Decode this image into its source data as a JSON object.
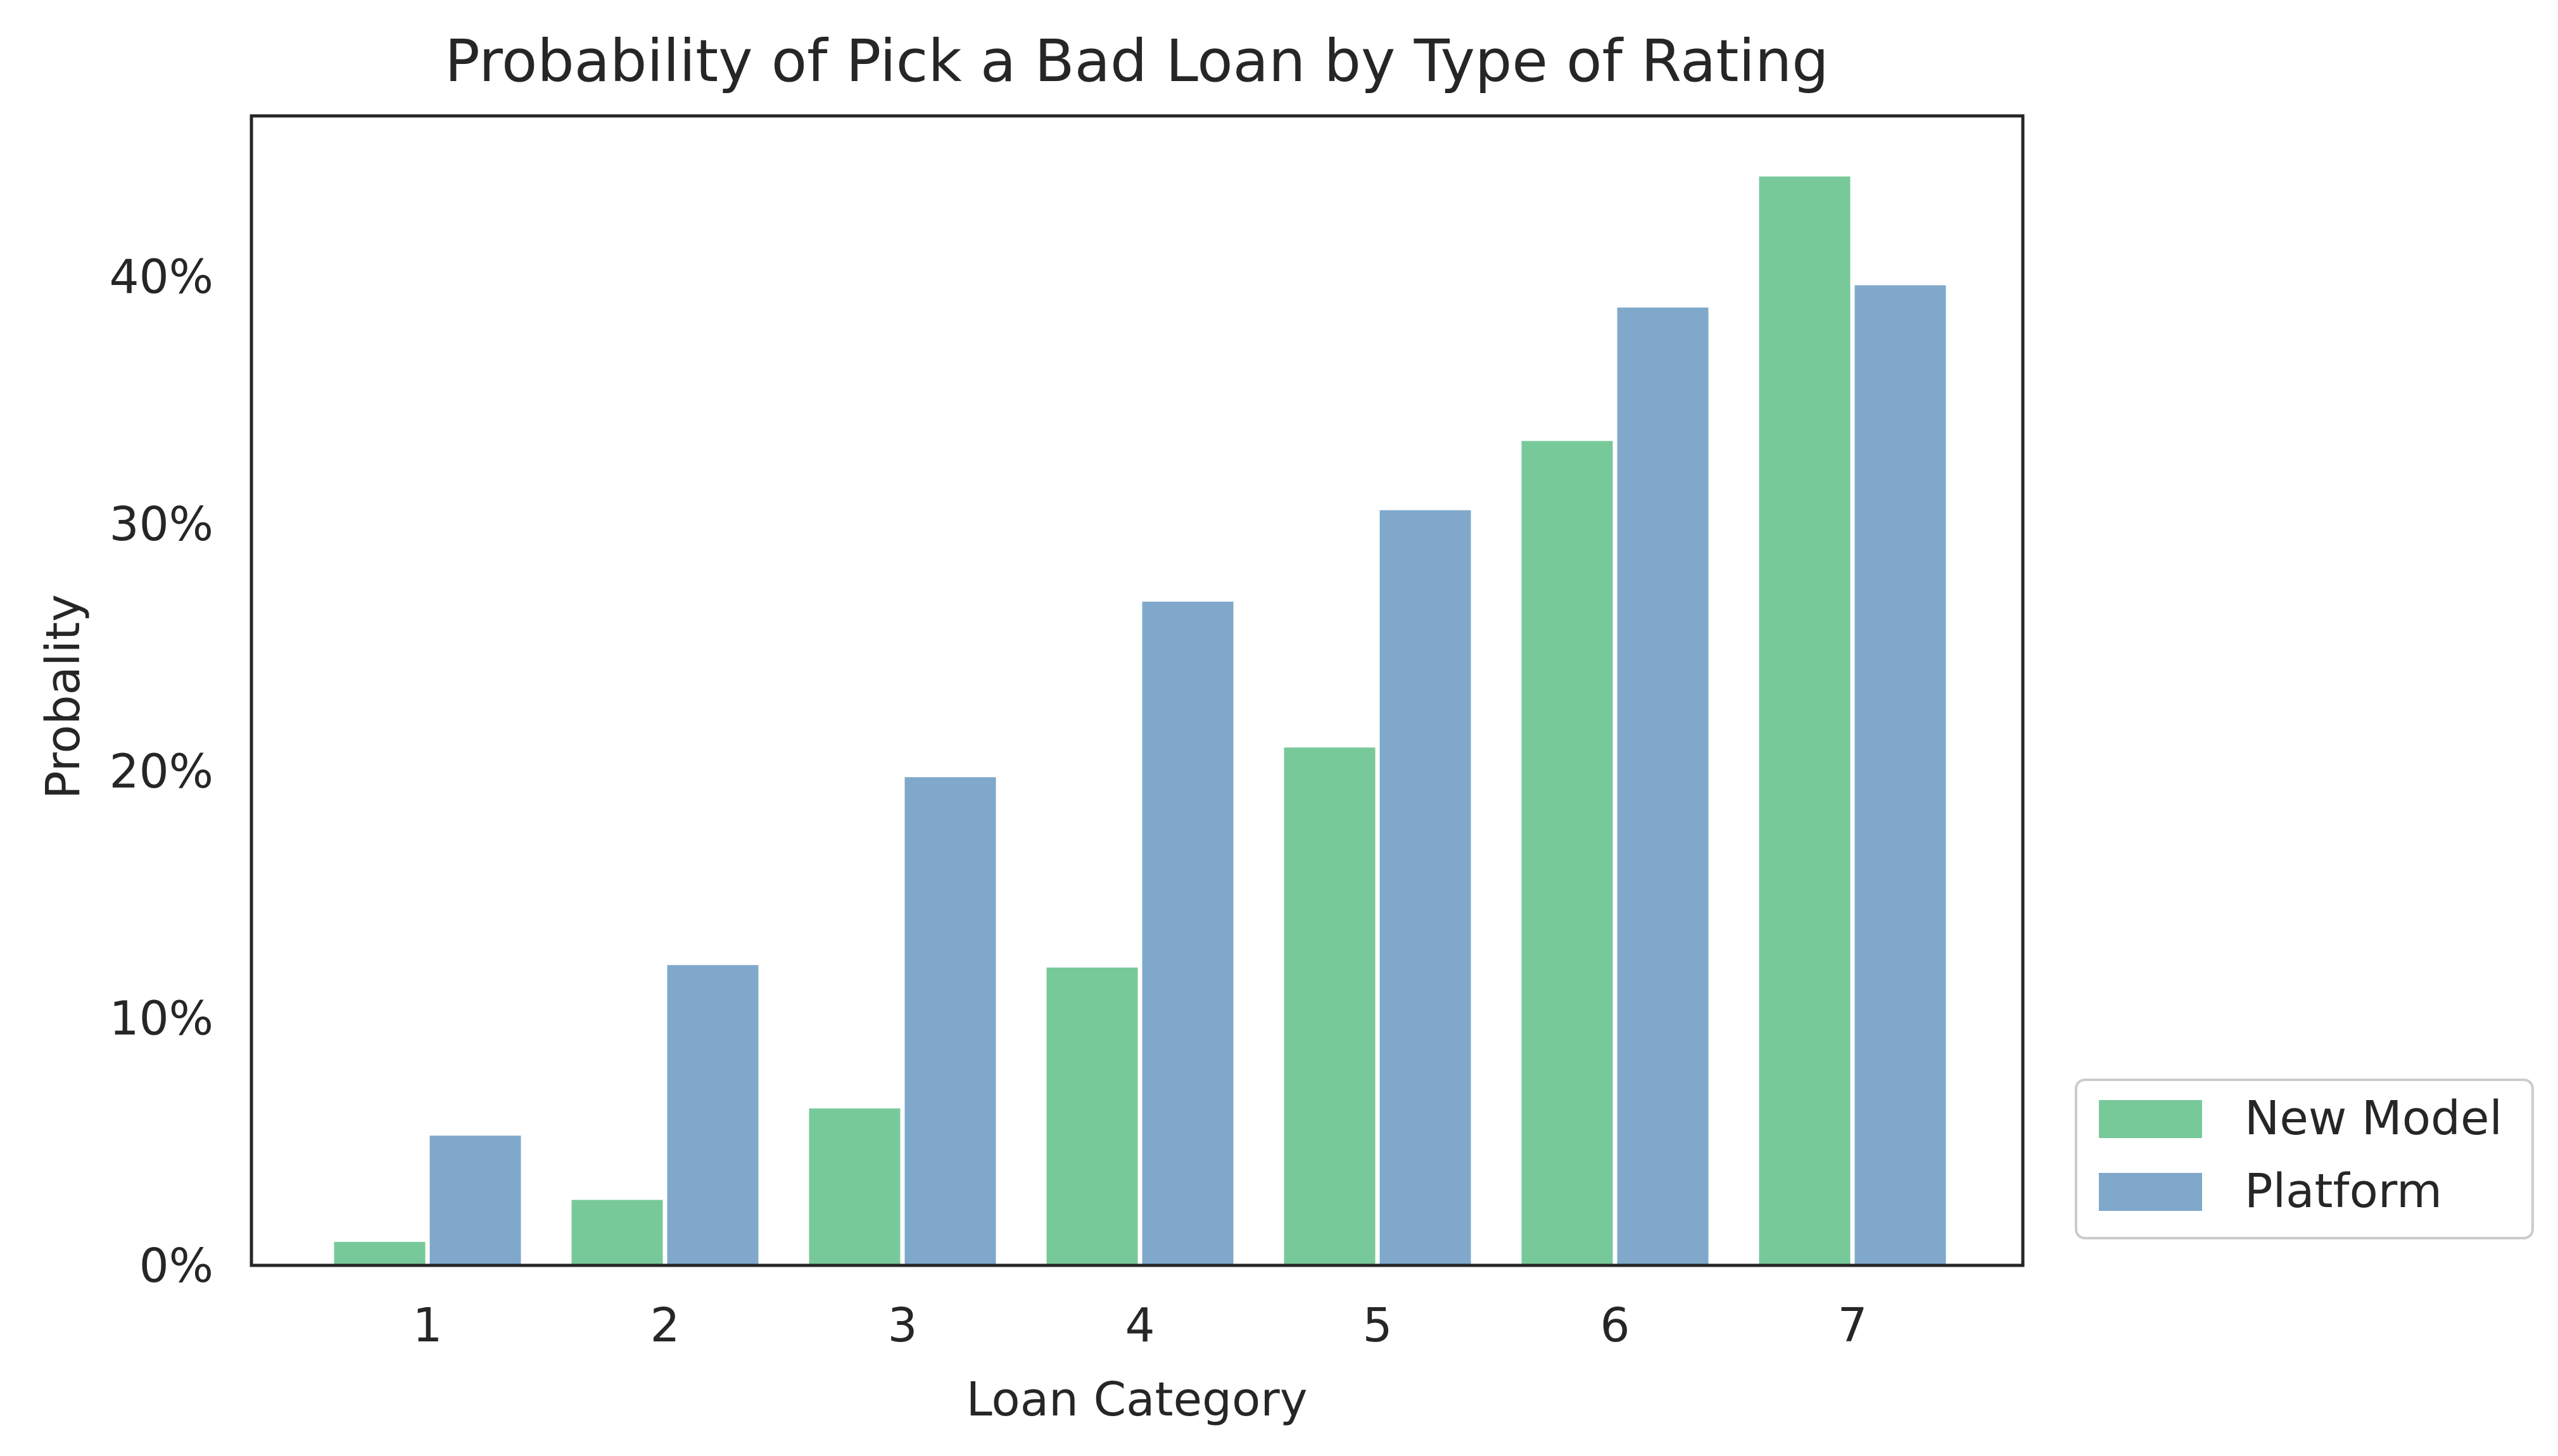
{
  "chart_data": {
    "type": "bar",
    "title": "Probability of Pick a Bad Loan by Type of Rating",
    "xlabel": "Loan Category",
    "ylabel": "Probality",
    "categories": [
      "1",
      "2",
      "3",
      "4",
      "5",
      "6",
      "7"
    ],
    "series": [
      {
        "name": "New Model",
        "color": "#78c99a",
        "values": [
          1.0,
          2.7,
          6.4,
          12.1,
          21.0,
          33.4,
          44.1
        ]
      },
      {
        "name": "Platform",
        "color": "#7fa8cb",
        "values": [
          5.3,
          12.2,
          19.8,
          26.9,
          30.6,
          38.8,
          39.7
        ]
      }
    ],
    "ylim": [
      0,
      46.5
    ],
    "yticks": [
      0,
      10,
      20,
      30,
      40
    ],
    "ytick_labels": [
      "0%",
      "10%",
      "20%",
      "30%",
      "40%"
    ],
    "grid": false,
    "legend_position": "outside bottom-right"
  }
}
